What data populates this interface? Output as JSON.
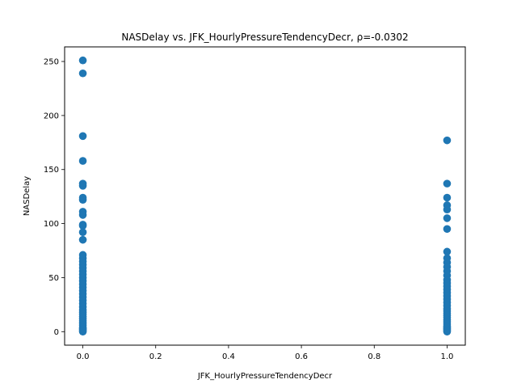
{
  "chart_data": {
    "type": "scatter",
    "title": "NASDelay vs. JFK_HourlyPressureTendencyDecr, ρ=-0.0302",
    "xlabel": "JFK_HourlyPressureTendencyDecr",
    "ylabel": "NASDelay",
    "xlim": [
      -0.05,
      1.05
    ],
    "ylim": [
      -12.5,
      263.5
    ],
    "xticks": [
      0.0,
      0.2,
      0.4,
      0.6,
      0.8,
      1.0
    ],
    "xtick_labels": [
      "0.0",
      "0.2",
      "0.4",
      "0.6",
      "0.8",
      "1.0"
    ],
    "yticks": [
      0,
      50,
      100,
      150,
      200,
      250
    ],
    "ytick_labels": [
      "0",
      "50",
      "100",
      "150",
      "200",
      "250"
    ],
    "grid": false,
    "legend": "none",
    "marker_color": "#1f77b4",
    "series": [
      {
        "points": [
          [
            0,
            251
          ],
          [
            0,
            239
          ],
          [
            0,
            181
          ],
          [
            0,
            158
          ],
          [
            0,
            137
          ],
          [
            0,
            135
          ],
          [
            0,
            124
          ],
          [
            0,
            122
          ],
          [
            0,
            111
          ],
          [
            0,
            108
          ],
          [
            0,
            99
          ],
          [
            0,
            98
          ],
          [
            0,
            92
          ],
          [
            0,
            85
          ],
          [
            0,
            71
          ],
          [
            0,
            68
          ],
          [
            0,
            65
          ],
          [
            0,
            62
          ],
          [
            0,
            59
          ],
          [
            0,
            56
          ],
          [
            0,
            53
          ],
          [
            0,
            50
          ],
          [
            0,
            47
          ],
          [
            0,
            44
          ],
          [
            0,
            41
          ],
          [
            0,
            38
          ],
          [
            0,
            35
          ],
          [
            0,
            32
          ],
          [
            0,
            29
          ],
          [
            0,
            26
          ],
          [
            0,
            23
          ],
          [
            0,
            20
          ],
          [
            0,
            18
          ],
          [
            0,
            16
          ],
          [
            0,
            14
          ],
          [
            0,
            12
          ],
          [
            0,
            10
          ],
          [
            0,
            8
          ],
          [
            0,
            6
          ],
          [
            0,
            4
          ],
          [
            0,
            3
          ],
          [
            0,
            2
          ],
          [
            0,
            1
          ],
          [
            0,
            0
          ],
          [
            1,
            177
          ],
          [
            1,
            137
          ],
          [
            1,
            124
          ],
          [
            1,
            117
          ],
          [
            1,
            113
          ],
          [
            1,
            105
          ],
          [
            1,
            95
          ],
          [
            1,
            74
          ],
          [
            1,
            68
          ],
          [
            1,
            64
          ],
          [
            1,
            60
          ],
          [
            1,
            56
          ],
          [
            1,
            52
          ],
          [
            1,
            48
          ],
          [
            1,
            45
          ],
          [
            1,
            42
          ],
          [
            1,
            39
          ],
          [
            1,
            36
          ],
          [
            1,
            33
          ],
          [
            1,
            30
          ],
          [
            1,
            27
          ],
          [
            1,
            24
          ],
          [
            1,
            21
          ],
          [
            1,
            19
          ],
          [
            1,
            17
          ],
          [
            1,
            15
          ],
          [
            1,
            13
          ],
          [
            1,
            11
          ],
          [
            1,
            9
          ],
          [
            1,
            7
          ],
          [
            1,
            5
          ],
          [
            1,
            4
          ],
          [
            1,
            3
          ],
          [
            1,
            2
          ],
          [
            1,
            1
          ],
          [
            1,
            0
          ]
        ]
      }
    ]
  }
}
